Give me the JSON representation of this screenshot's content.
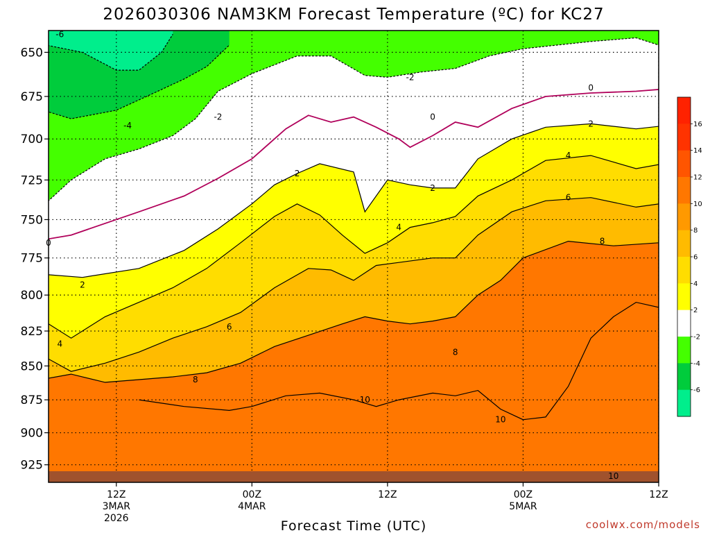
{
  "chart_data": {
    "type": "heatmap",
    "title": "2026030306 NAM3KM Forecast Temperature (ºC) for KC27",
    "xlabel": "Forecast Time (UTC)",
    "ylabel": "",
    "credit": "coolwx.com/models",
    "y_axis": {
      "scale": "pressure-inverted",
      "ylim": [
        939,
        638
      ],
      "ticks": [
        650,
        675,
        700,
        725,
        750,
        775,
        800,
        825,
        850,
        875,
        900,
        925
      ]
    },
    "x_axis": {
      "range_hours": [
        6,
        60
      ],
      "ticks": [
        {
          "hour": 12,
          "lines": [
            "12Z",
            "3MAR",
            "2026"
          ]
        },
        {
          "hour": 24,
          "lines": [
            "00Z",
            "4MAR"
          ]
        },
        {
          "hour": 36,
          "lines": [
            "12Z"
          ]
        },
        {
          "hour": 48,
          "lines": [
            "00Z",
            "5MAR"
          ]
        },
        {
          "hour": 60,
          "lines": [
            "12Z"
          ]
        }
      ]
    },
    "grid": true,
    "colorbar": {
      "placement": "right",
      "levels": [
        -8,
        -6,
        -4,
        -2,
        2,
        4,
        6,
        8,
        10,
        12,
        14,
        16,
        18
      ],
      "tick_labels": [
        "16",
        "14",
        "12",
        "10",
        "8",
        "6",
        "4",
        "2",
        "-2",
        "-4",
        "-6"
      ],
      "colors": [
        "#00ee8c",
        "#00cc3c",
        "#44ff00",
        "#ffffff",
        "#ffff00",
        "#ffdd00",
        "#ffbb00",
        "#ff9900",
        "#ff7700",
        "#ff5500",
        "#ff3300",
        "#ff2200"
      ]
    },
    "ground_color": "#a0522d",
    "contour_lines": [
      {
        "level": 0,
        "color": "#b0005a",
        "points": [
          [
            4.0,
            765
          ],
          [
            8,
            760
          ],
          [
            14,
            745
          ],
          [
            18,
            735
          ],
          [
            21,
            724
          ],
          [
            24,
            712
          ],
          [
            27,
            694
          ],
          [
            29,
            686
          ],
          [
            31,
            690
          ],
          [
            33,
            687
          ],
          [
            35,
            693
          ],
          [
            37,
            700
          ],
          [
            38,
            705
          ],
          [
            40,
            698
          ],
          [
            42,
            690
          ],
          [
            44,
            693
          ],
          [
            47,
            682
          ],
          [
            50,
            675
          ],
          [
            54,
            673
          ],
          [
            58,
            672
          ],
          [
            62,
            670
          ]
        ],
        "labels": [
          {
            "text": "0",
            "x": 6,
            "y": 765
          },
          {
            "text": "0",
            "x": 40,
            "y": 687
          },
          {
            "text": "0",
            "x": 54,
            "y": 670
          }
        ]
      },
      {
        "level": 2,
        "color": "#000000",
        "points": [
          [
            4.0,
            785
          ],
          [
            9,
            788
          ],
          [
            14,
            782
          ],
          [
            18,
            770
          ],
          [
            21,
            756
          ],
          [
            24,
            740
          ],
          [
            26,
            728
          ],
          [
            28,
            721
          ],
          [
            30,
            715
          ],
          [
            33,
            720
          ],
          [
            34,
            745
          ],
          [
            36,
            725
          ],
          [
            38,
            728
          ],
          [
            40,
            730
          ],
          [
            42,
            730
          ],
          [
            44,
            712
          ],
          [
            47,
            700
          ],
          [
            50,
            693
          ],
          [
            54,
            691
          ],
          [
            58,
            694
          ],
          [
            62,
            691
          ]
        ],
        "labels": [
          {
            "text": "2",
            "x": 9,
            "y": 793
          },
          {
            "text": "2",
            "x": 28,
            "y": 721
          },
          {
            "text": "2",
            "x": 40,
            "y": 730
          },
          {
            "text": "2",
            "x": 54,
            "y": 691
          }
        ]
      },
      {
        "level": 4,
        "color": "#000000",
        "points": [
          [
            4.0,
            810
          ],
          [
            8,
            830
          ],
          [
            11,
            815
          ],
          [
            14,
            805
          ],
          [
            17,
            795
          ],
          [
            20,
            782
          ],
          [
            23,
            765
          ],
          [
            26,
            748
          ],
          [
            28,
            740
          ],
          [
            30,
            747
          ],
          [
            32,
            760
          ],
          [
            34,
            772
          ],
          [
            36,
            765
          ],
          [
            38,
            755
          ],
          [
            40,
            752
          ],
          [
            42,
            748
          ],
          [
            44,
            735
          ],
          [
            47,
            725
          ],
          [
            50,
            713
          ],
          [
            54,
            710
          ],
          [
            58,
            718
          ],
          [
            62,
            713
          ]
        ],
        "labels": [
          {
            "text": "4",
            "x": 7,
            "y": 834
          },
          {
            "text": "4",
            "x": 37,
            "y": 755
          },
          {
            "text": "4",
            "x": 52,
            "y": 710
          }
        ]
      },
      {
        "level": 6,
        "color": "#000000",
        "points": [
          [
            4.0,
            836
          ],
          [
            8,
            854
          ],
          [
            11,
            848
          ],
          [
            14,
            840
          ],
          [
            17,
            830
          ],
          [
            20,
            822
          ],
          [
            23,
            812
          ],
          [
            26,
            795
          ],
          [
            29,
            782
          ],
          [
            31,
            783
          ],
          [
            33,
            790
          ],
          [
            35,
            780
          ],
          [
            37,
            778
          ],
          [
            40,
            775
          ],
          [
            42,
            775
          ],
          [
            44,
            760
          ],
          [
            47,
            745
          ],
          [
            50,
            738
          ],
          [
            54,
            736
          ],
          [
            58,
            742
          ],
          [
            62,
            738
          ]
        ],
        "labels": [
          {
            "text": "6",
            "x": 22,
            "y": 822
          },
          {
            "text": "6",
            "x": 52,
            "y": 736
          }
        ]
      },
      {
        "level": 8,
        "color": "#000000",
        "points": [
          [
            4.0,
            862
          ],
          [
            8,
            856
          ],
          [
            11,
            862
          ],
          [
            14,
            860
          ],
          [
            17,
            858
          ],
          [
            20,
            855
          ],
          [
            23,
            848
          ],
          [
            26,
            836
          ],
          [
            29,
            828
          ],
          [
            32,
            820
          ],
          [
            34,
            815
          ],
          [
            36,
            818
          ],
          [
            38,
            820
          ],
          [
            40,
            818
          ],
          [
            42,
            815
          ],
          [
            44,
            800
          ],
          [
            46,
            790
          ],
          [
            48,
            775
          ],
          [
            52,
            764
          ],
          [
            56,
            767
          ],
          [
            62,
            764
          ]
        ],
        "labels": [
          {
            "text": "8",
            "x": 19,
            "y": 860
          },
          {
            "text": "8",
            "x": 42,
            "y": 840
          },
          {
            "text": "8",
            "x": 55,
            "y": 764
          }
        ]
      },
      {
        "level": 10,
        "color": "#000000",
        "points": [
          [
            14,
            875
          ],
          [
            18,
            880
          ],
          [
            22,
            883
          ],
          [
            24,
            880
          ],
          [
            27,
            872
          ],
          [
            30,
            870
          ],
          [
            33,
            875
          ],
          [
            35,
            880
          ],
          [
            37,
            875
          ],
          [
            40,
            870
          ],
          [
            42,
            872
          ],
          [
            44,
            868
          ],
          [
            46,
            882
          ],
          [
            48,
            890
          ],
          [
            50,
            888
          ],
          [
            52,
            865
          ],
          [
            54,
            830
          ],
          [
            56,
            815
          ],
          [
            58,
            805
          ],
          [
            62,
            812
          ]
        ],
        "labels": [
          {
            "text": "10",
            "x": 34,
            "y": 875
          },
          {
            "text": "10",
            "x": 46,
            "y": 890
          },
          {
            "text": "10",
            "x": 56,
            "y": 934
          }
        ]
      },
      {
        "level": -2,
        "color": "#000000",
        "dashed": true,
        "points": [
          [
            4.0,
            745
          ],
          [
            6,
            738
          ],
          [
            8,
            725
          ],
          [
            11,
            712
          ],
          [
            14,
            706
          ],
          [
            17,
            698
          ],
          [
            19,
            688
          ],
          [
            21,
            672
          ],
          [
            24,
            662
          ],
          [
            28,
            652
          ],
          [
            31,
            652
          ],
          [
            34,
            663
          ],
          [
            36,
            664
          ],
          [
            39,
            661
          ],
          [
            42,
            659
          ],
          [
            45,
            652
          ],
          [
            48,
            648
          ],
          [
            51,
            646
          ],
          [
            54,
            644
          ],
          [
            58,
            642
          ],
          [
            62,
            650
          ]
        ],
        "labels": [
          {
            "text": "-2",
            "x": 21,
            "y": 687
          },
          {
            "text": "-2",
            "x": 38,
            "y": 664
          }
        ]
      },
      {
        "level": -4,
        "color": "#000000",
        "dashed": true,
        "points": [
          [
            4.0,
            680
          ],
          [
            8,
            688
          ],
          [
            12,
            683
          ],
          [
            15,
            674
          ],
          [
            18,
            665
          ],
          [
            20,
            658
          ],
          [
            22,
            646
          ]
        ],
        "labels": [
          {
            "text": "-4",
            "x": 13,
            "y": 692
          }
        ]
      },
      {
        "level": -6,
        "color": "#000000",
        "dashed": true,
        "points": [
          [
            5,
            645
          ],
          [
            9,
            650
          ],
          [
            12,
            660
          ],
          [
            14,
            660
          ],
          [
            16,
            650
          ],
          [
            17,
            640
          ]
        ],
        "labels": [
          {
            "text": "-6",
            "x": 7,
            "y": 640
          }
        ]
      }
    ]
  }
}
